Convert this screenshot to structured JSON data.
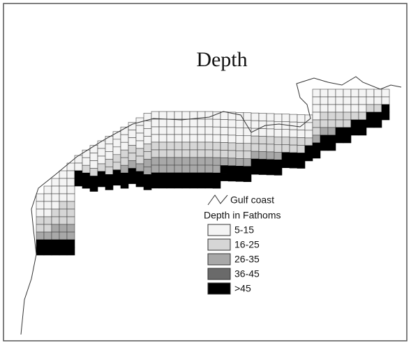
{
  "title": "Depth",
  "legend": {
    "line_label": "Gulf coast",
    "title": "Depth in Fathoms",
    "items": [
      "5-15",
      "16-25",
      "26-35",
      "36-45",
      ">45"
    ]
  }
}
